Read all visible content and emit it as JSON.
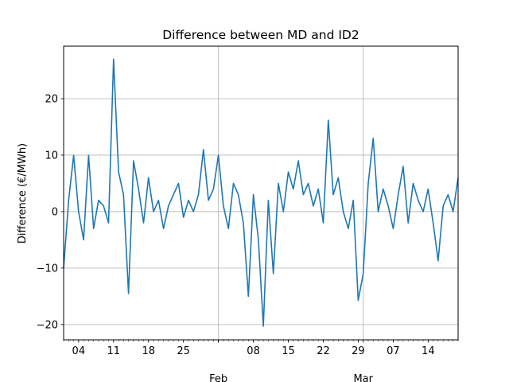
{
  "chart_data": {
    "type": "line",
    "title": "Difference between MD and ID2",
    "xlabel": "",
    "ylabel": "Difference (€/MWh)",
    "grid": true,
    "legend": "none",
    "color": "#1f77b4",
    "ylim": [
      -22.7,
      29.3
    ],
    "xlim": [
      "2024-01-01",
      "2024-03-20"
    ],
    "y_ticks": [
      -20,
      -10,
      0,
      10,
      20
    ],
    "y_tick_labels": [
      "−20",
      "−10",
      "0",
      "10",
      "20"
    ],
    "x_minor_tick_labels": [
      {
        "date": "2024-01-04",
        "label": "04"
      },
      {
        "date": "2024-01-11",
        "label": "11"
      },
      {
        "date": "2024-01-18",
        "label": "18"
      },
      {
        "date": "2024-01-25",
        "label": "25"
      },
      {
        "date": "2024-02-01",
        "label": ""
      },
      {
        "date": "2024-02-08",
        "label": "08"
      },
      {
        "date": "2024-02-15",
        "label": "15"
      },
      {
        "date": "2024-02-22",
        "label": "22"
      },
      {
        "date": "2024-02-29",
        "label": "29"
      },
      {
        "date": "2024-03-07",
        "label": "07"
      },
      {
        "date": "2024-03-14",
        "label": "14"
      }
    ],
    "x_major_tick_labels": [
      {
        "date": "2024-02-01",
        "label": "Feb"
      },
      {
        "date": "2024-03-01",
        "label": "Mar"
      }
    ],
    "series": [
      {
        "name": "",
        "x": [
          "2024-01-01",
          "2024-01-02",
          "2024-01-03",
          "2024-01-04",
          "2024-01-05",
          "2024-01-06",
          "2024-01-07",
          "2024-01-08",
          "2024-01-09",
          "2024-01-10",
          "2024-01-11",
          "2024-01-12",
          "2024-01-13",
          "2024-01-14",
          "2024-01-15",
          "2024-01-16",
          "2024-01-17",
          "2024-01-18",
          "2024-01-19",
          "2024-01-20",
          "2024-01-21",
          "2024-01-22",
          "2024-01-23",
          "2024-01-24",
          "2024-01-25",
          "2024-01-26",
          "2024-01-27",
          "2024-01-28",
          "2024-01-29",
          "2024-01-30",
          "2024-01-31",
          "2024-02-01",
          "2024-02-02",
          "2024-02-03",
          "2024-02-04",
          "2024-02-05",
          "2024-02-06",
          "2024-02-07",
          "2024-02-08",
          "2024-02-09",
          "2024-02-10",
          "2024-02-11",
          "2024-02-12",
          "2024-02-13",
          "2024-02-14",
          "2024-02-15",
          "2024-02-16",
          "2024-02-17",
          "2024-02-18",
          "2024-02-19",
          "2024-02-20",
          "2024-02-21",
          "2024-02-22",
          "2024-02-23",
          "2024-02-24",
          "2024-02-25",
          "2024-02-26",
          "2024-02-27",
          "2024-02-28",
          "2024-02-29",
          "2024-03-01",
          "2024-03-02",
          "2024-03-03",
          "2024-03-04",
          "2024-03-05",
          "2024-03-06",
          "2024-03-07",
          "2024-03-08",
          "2024-03-09",
          "2024-03-10",
          "2024-03-11",
          "2024-03-12",
          "2024-03-13",
          "2024-03-14",
          "2024-03-15",
          "2024-03-16",
          "2024-03-17",
          "2024-03-18",
          "2024-03-19",
          "2024-03-20"
        ],
        "y": [
          -10,
          2,
          10,
          0,
          -5,
          10,
          -3,
          2,
          1,
          -2,
          27,
          7,
          3,
          -14.5,
          9,
          4,
          -2,
          6,
          0,
          2,
          -3,
          1,
          3,
          5,
          -1,
          2,
          0,
          3,
          11,
          2,
          4,
          10,
          1,
          -3,
          5,
          3,
          -2,
          -15,
          3,
          -5,
          -20.3,
          2,
          -11,
          5,
          0,
          7,
          4,
          9,
          3,
          5,
          1,
          4,
          -2,
          16.2,
          3,
          6,
          0,
          -3,
          2,
          -15.7,
          -11,
          5,
          13,
          0,
          4,
          1,
          -3,
          3,
          8,
          -2,
          5,
          2,
          0,
          4,
          -2,
          -8.7,
          1,
          3,
          0,
          6
        ]
      }
    ]
  }
}
